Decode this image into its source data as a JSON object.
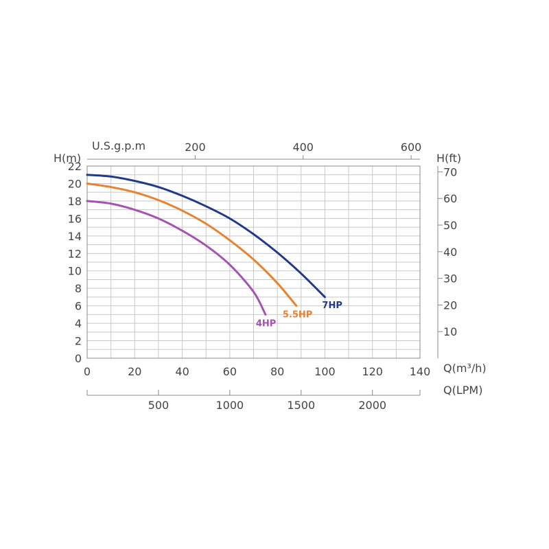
{
  "chart_data": {
    "type": "line",
    "title": "",
    "xlabel": "Q(m³/h)",
    "ylabel": "H(m)",
    "xlim": [
      0,
      140
    ],
    "ylim": [
      0,
      22
    ],
    "x_ticks": [
      0,
      20,
      40,
      60,
      80,
      100,
      120,
      140
    ],
    "y_ticks": [
      0,
      2,
      4,
      6,
      8,
      10,
      12,
      14,
      16,
      18,
      20,
      22
    ],
    "grid": true,
    "secondary_axes": {
      "top": {
        "label": "U.S.g.p.m",
        "ticks": [
          200,
          400,
          600
        ],
        "units_per_primary": 4.403
      },
      "right": {
        "label": "H(ft)",
        "ticks": [
          10,
          20,
          30,
          40,
          50,
          60,
          70
        ],
        "units_per_primary": 3.2808
      },
      "bottom2": {
        "label": "Q(LPM)",
        "ticks": [
          500,
          1000,
          1500,
          2000
        ],
        "units_per_primary": 16.667
      }
    },
    "series": [
      {
        "name": "7HP",
        "color": "#1f3a8a",
        "x": [
          0,
          10,
          20,
          30,
          40,
          50,
          60,
          70,
          80,
          90,
          100
        ],
        "y": [
          21,
          20.8,
          20.3,
          19.6,
          18.6,
          17.4,
          16.0,
          14.2,
          12.1,
          9.7,
          7.0
        ]
      },
      {
        "name": "5.5HP",
        "color": "#e8822e",
        "x": [
          0,
          10,
          20,
          30,
          40,
          50,
          60,
          70,
          80,
          88
        ],
        "y": [
          20,
          19.6,
          19.0,
          18.1,
          16.9,
          15.4,
          13.5,
          11.3,
          8.6,
          6.0
        ]
      },
      {
        "name": "4HP",
        "color": "#a652b3",
        "x": [
          0,
          10,
          20,
          30,
          40,
          50,
          60,
          70,
          75
        ],
        "y": [
          18,
          17.7,
          17.0,
          16.0,
          14.6,
          12.9,
          10.7,
          7.6,
          5.0
        ]
      }
    ]
  }
}
